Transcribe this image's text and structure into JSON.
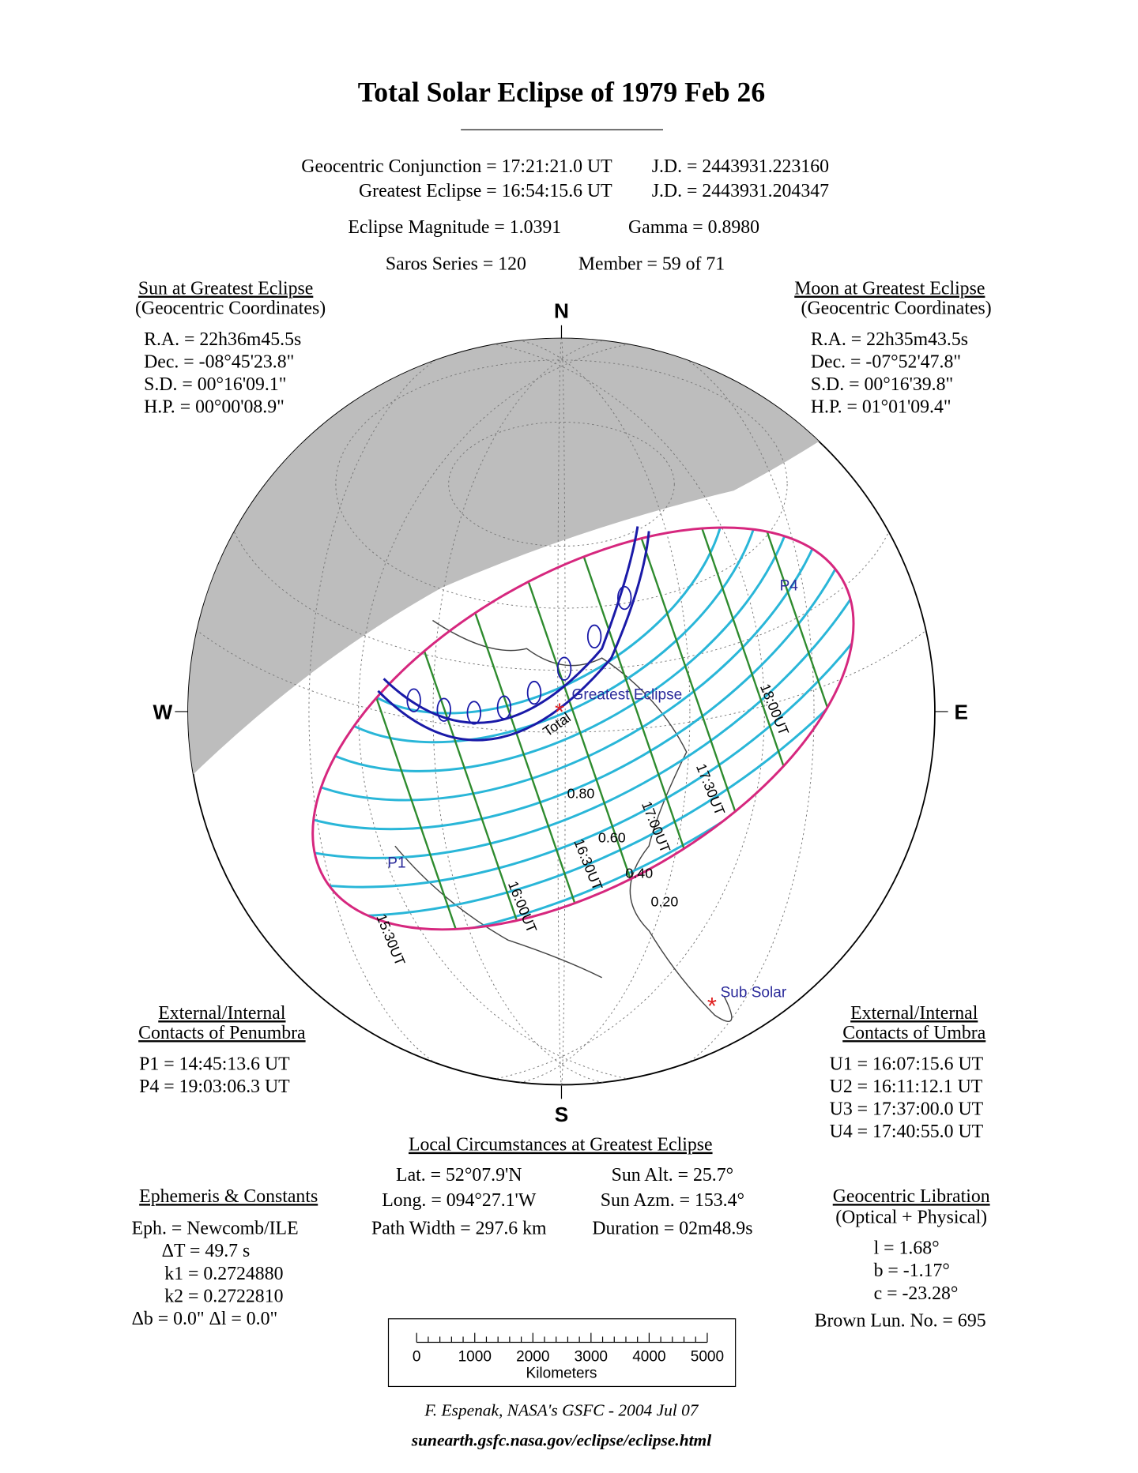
{
  "header": {
    "title": "Total Solar Eclipse of  1979 Feb 26",
    "conjunction": "Geocentric Conjunction =  17:21:21.0 UT",
    "conjunction_jd": "J.D. =  2443931.223160",
    "greatest": "Greatest Eclipse =  16:54:15.6 UT",
    "greatest_jd": "J.D. =  2443931.204347",
    "magnitude": "Eclipse Magnitude =  1.0391",
    "gamma": "Gamma =  0.8980",
    "saros": "Saros Series = 120",
    "member": "Member = 59 of 71"
  },
  "sun": {
    "heading": "Sun at Greatest Eclipse",
    "subheading": "(Geocentric Coordinates)",
    "lines": [
      "R.A. = 22h36m45.5s",
      "Dec. = -08°45'23.8\"",
      "S.D. =  00°16'09.1\"",
      "H.P. =  00°00'08.9\""
    ]
  },
  "moon": {
    "heading": "Moon at Greatest Eclipse",
    "subheading": "(Geocentric Coordinates)",
    "lines": [
      "R.A. = 22h35m43.5s",
      "Dec. = -07°52'47.8\"",
      "S.D. =  00°16'39.8\"",
      "H.P. =  01°01'09.4\""
    ]
  },
  "penumbra": {
    "heading": [
      "External/Internal",
      "Contacts of Penumbra"
    ],
    "lines": [
      "P1 = 14:45:13.6 UT",
      "P4 = 19:03:06.3 UT"
    ]
  },
  "umbra": {
    "heading": [
      "External/Internal",
      "Contacts of Umbra"
    ],
    "lines": [
      "U1 = 16:07:15.6 UT",
      "U2 = 16:11:12.1 UT",
      "U3 = 17:37:00.0 UT",
      "U4 = 17:40:55.0 UT"
    ]
  },
  "local": {
    "heading": "Local Circumstances at Greatest Eclipse",
    "rows": [
      [
        "Lat. =  52°07.9'N",
        "Sun Alt. =   25.7°"
      ],
      [
        "Long. = 094°27.1'W",
        "Sun Azm. = 153.4°"
      ],
      [
        "Path Width = 297.6 km",
        "Duration =  02m48.9s"
      ]
    ]
  },
  "ephemeris": {
    "heading": "Ephemeris & Constants",
    "lines": [
      "Eph. = Newcomb/ILE",
      "ΔT =     49.7 s",
      "k1 = 0.2724880",
      "k2 = 0.2722810",
      "Δb =  0.0\"   Δl =  0.0\""
    ]
  },
  "libration": {
    "heading": "Geocentric Libration",
    "subheading": "(Optical + Physical)",
    "lines": [
      "l =   1.68°",
      "b =  -1.17°",
      "c = -23.28°"
    ],
    "brown": "Brown Lun. No. =  695"
  },
  "map": {
    "north": "N",
    "south": "S",
    "west": "W",
    "east": "E",
    "greatest": "Greatest Eclipse",
    "sub_solar": "Sub Solar",
    "total": "Total",
    "p1": "P1",
    "p4": "P4",
    "times": [
      "18:00UT",
      "17:30UT",
      "17:00UT",
      "16:30UT",
      "16:00UT",
      "15:30UT"
    ],
    "magnitudes": [
      "0.80",
      "0.60",
      "0.40",
      "0.20"
    ]
  },
  "scale": {
    "ticks": [
      "0",
      "1000",
      "2000",
      "3000",
      "4000",
      "5000"
    ],
    "unit": "Kilometers"
  },
  "footer": {
    "credit": "F. Espenak, NASA's GSFC -  2004 Jul 07",
    "url": "sunearth.gsfc.nasa.gov/eclipse/eclipse.html"
  }
}
